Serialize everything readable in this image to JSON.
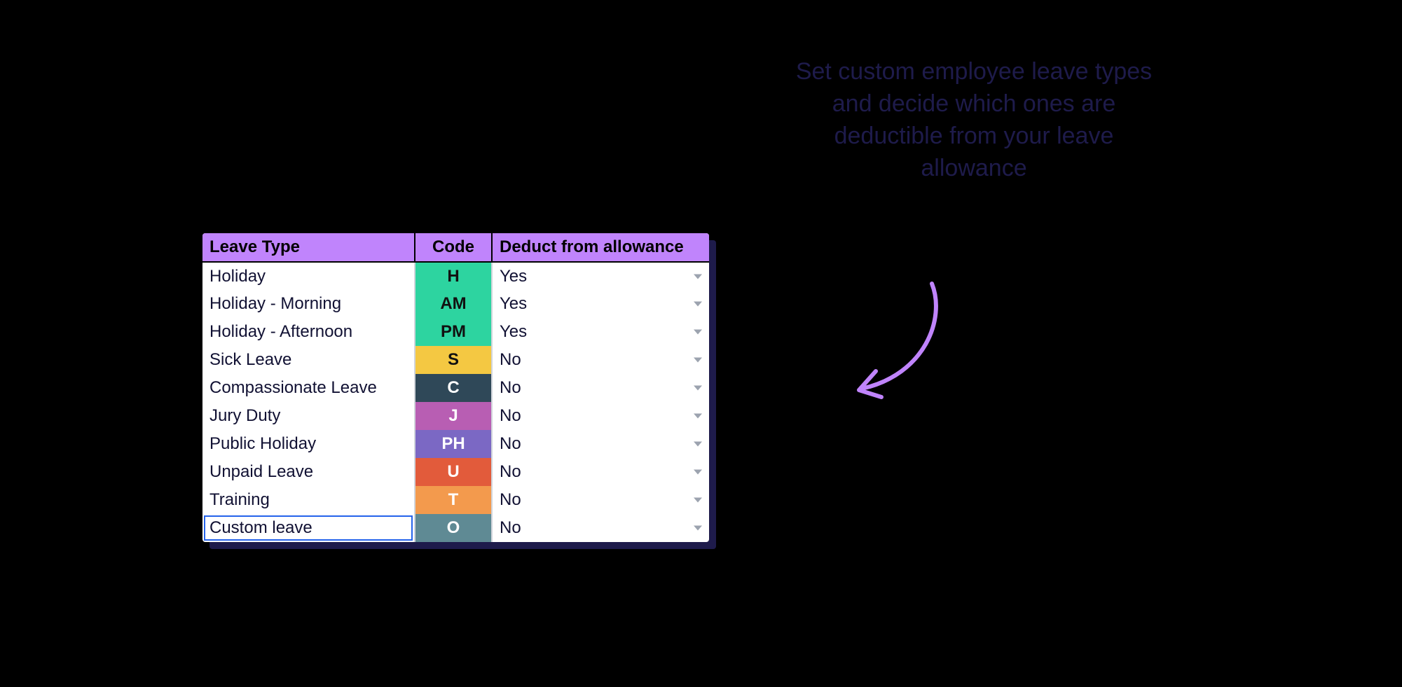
{
  "caption": "Set custom employee leave types and decide which ones are deductible from your leave allowance",
  "arrow": {
    "stroke": "#c084fc",
    "stroke_width": 6
  },
  "table": {
    "header_bg": "#c084fc",
    "columns": [
      "Leave Type",
      "Code",
      "Deduct from allowance"
    ],
    "rows": [
      {
        "type": "Holiday",
        "code": "H",
        "code_bg": "#2dd4a0",
        "code_text": "#111111",
        "deduct": "Yes",
        "editing": false
      },
      {
        "type": "Holiday - Morning",
        "code": "AM",
        "code_bg": "#2dd4a0",
        "code_text": "#111111",
        "deduct": "Yes",
        "editing": false
      },
      {
        "type": "Holiday - Afternoon",
        "code": "PM",
        "code_bg": "#2dd4a0",
        "code_text": "#111111",
        "deduct": "Yes",
        "editing": false
      },
      {
        "type": "Sick Leave",
        "code": "S",
        "code_bg": "#f4c842",
        "code_text": "#111111",
        "deduct": "No",
        "editing": false
      },
      {
        "type": "Compassionate Leave",
        "code": "C",
        "code_bg": "#2f4858",
        "code_text": "#ffffff",
        "deduct": "No",
        "editing": false
      },
      {
        "type": "Jury Duty",
        "code": "J",
        "code_bg": "#b85eb3",
        "code_text": "#ffffff",
        "deduct": "No",
        "editing": false
      },
      {
        "type": "Public Holiday",
        "code": "PH",
        "code_bg": "#7b68c4",
        "code_text": "#ffffff",
        "deduct": "No",
        "editing": false
      },
      {
        "type": "Unpaid Leave",
        "code": "U",
        "code_bg": "#e25b3b",
        "code_text": "#ffffff",
        "deduct": "No",
        "editing": false
      },
      {
        "type": "Training",
        "code": "T",
        "code_bg": "#f39a4d",
        "code_text": "#ffffff",
        "deduct": "No",
        "editing": false
      },
      {
        "type": "Custom leave",
        "code": "O",
        "code_bg": "#5f8a94",
        "code_text": "#ffffff",
        "deduct": "No",
        "editing": true
      }
    ]
  }
}
